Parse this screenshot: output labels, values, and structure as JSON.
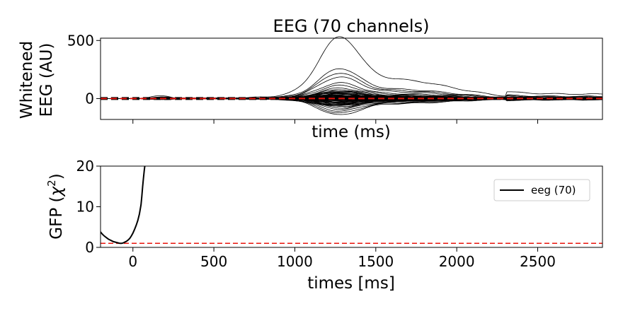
{
  "chart_data": [
    {
      "type": "line",
      "title": "EEG (70 channels)",
      "xlabel": "time (ms)",
      "ylabel_lines": [
        "Whitened",
        "EEG (AU)"
      ],
      "xlim": [
        -200,
        2900
      ],
      "ylim": [
        -180,
        520
      ],
      "yticks": [
        0,
        500
      ],
      "yticklabels": [
        "0",
        "500"
      ],
      "xticks": [
        0,
        500,
        1000,
        1500,
        2000,
        2500
      ],
      "show_xticklabels": false,
      "grid": false,
      "n_channels": 70,
      "channel_color": "#000000",
      "reference_line": {
        "y": 0,
        "color": "#e8140c",
        "style": "dashed"
      },
      "mean_line": {
        "color": "#000000",
        "style": "dashed"
      },
      "channel_peaks_at_1270ms": [
        472,
        230,
        195,
        165,
        120,
        100,
        80,
        68,
        58,
        48,
        40,
        32,
        25,
        18,
        12,
        6,
        0,
        -5,
        -12,
        -18,
        -25,
        -30,
        -38,
        -45,
        -52,
        -60,
        -70,
        -80,
        -95,
        -110,
        -125,
        14,
        -14,
        22,
        -22,
        28,
        -28,
        35,
        -35,
        42,
        -42,
        50,
        -50,
        4,
        -4,
        9,
        -9,
        16,
        -16,
        20,
        -20,
        26,
        -26,
        31,
        -31,
        37,
        -37,
        44,
        -44,
        55,
        -55,
        62,
        -62,
        2,
        -2,
        7,
        -7,
        11,
        -11,
        3
      ]
    },
    {
      "type": "line",
      "xlabel": "times [ms]",
      "ylabel": "GFP (χ²)",
      "xlim": [
        -200,
        2900
      ],
      "ylim": [
        0,
        20
      ],
      "yticks": [
        0,
        10,
        20
      ],
      "yticklabels": [
        "0",
        "10",
        "20"
      ],
      "xticks": [
        0,
        500,
        1000,
        1500,
        2000,
        2500
      ],
      "xticklabels": [
        "0",
        "500",
        "1000",
        "1500",
        "2000",
        "2500"
      ],
      "grid": false,
      "legend_position": "upper-right",
      "reference_line": {
        "y": 1,
        "color": "#e8140c",
        "style": "dashed"
      },
      "series": [
        {
          "name": "eeg (70)",
          "color": "#000000",
          "x": [
            -200,
            -190,
            -180,
            -170,
            -160,
            -150,
            -140,
            -130,
            -120,
            -110,
            -100,
            -90,
            -80,
            -70,
            -60,
            -50,
            -40,
            -30,
            -20,
            -10,
            0,
            10,
            20,
            30,
            40,
            50,
            55,
            60,
            65,
            70,
            75,
            80
          ],
          "y": [
            3.8,
            3.3,
            2.9,
            2.6,
            2.3,
            2.0,
            1.8,
            1.6,
            1.4,
            1.3,
            1.2,
            1.1,
            1.0,
            1.0,
            1.1,
            1.3,
            1.5,
            1.8,
            2.2,
            2.8,
            3.5,
            4.4,
            5.4,
            6.6,
            8.2,
            10.5,
            12.5,
            15,
            17,
            19,
            20.5,
            22
          ]
        }
      ]
    }
  ]
}
